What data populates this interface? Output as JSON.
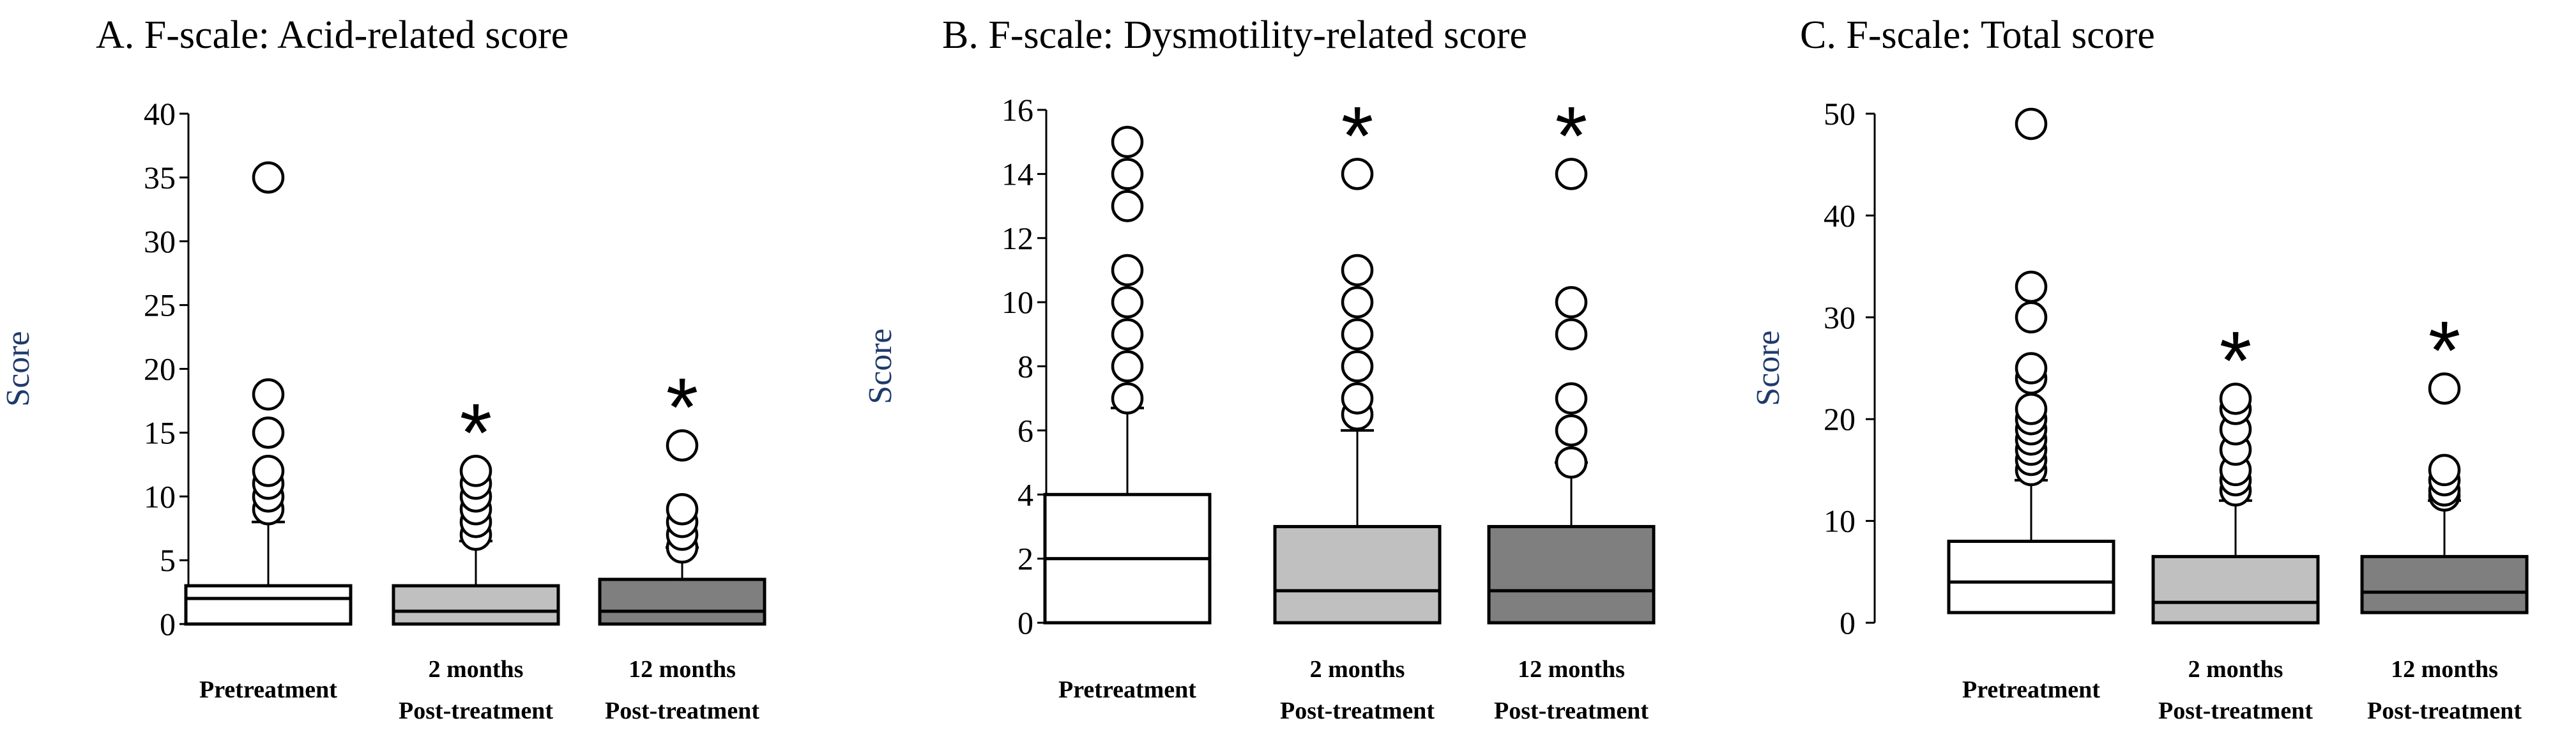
{
  "chart_data": [
    {
      "type": "box",
      "title": "A. F-scale: Acid-related score",
      "xlabel": "",
      "ylabel": "Score",
      "ylim": [
        0,
        40
      ],
      "yticks": [
        0,
        5,
        10,
        15,
        20,
        25,
        30,
        35,
        40
      ],
      "categories": [
        {
          "lines": [
            "Pretreatment"
          ],
          "fill": "#ffffff",
          "q1": 0,
          "median": 2,
          "q3": 3,
          "whisker_high": 8,
          "outliers": [
            9,
            10,
            11,
            12,
            15,
            18,
            35
          ],
          "significant": false
        },
        {
          "lines": [
            "2 months",
            "Post-treatment"
          ],
          "fill": "#c0c0c0",
          "q1": 0,
          "median": 1,
          "q3": 3,
          "whisker_high": 6.5,
          "outliers": [
            7,
            8,
            9,
            10,
            11,
            12
          ],
          "significant": true
        },
        {
          "lines": [
            "12 months",
            "Post-treatment"
          ],
          "fill": "#7f7f7f",
          "q1": 0,
          "median": 1,
          "q3": 3.5,
          "whisker_high": 6,
          "outliers": [
            6,
            7,
            8,
            9,
            14
          ],
          "significant": true
        }
      ],
      "significance_marker": "*"
    },
    {
      "type": "box",
      "title": "B. F-scale: Dysmotility-related score",
      "xlabel": "",
      "ylabel": "Score",
      "ylim": [
        0,
        16
      ],
      "yticks": [
        0,
        2,
        4,
        6,
        8,
        10,
        12,
        14,
        16
      ],
      "categories": [
        {
          "lines": [
            "Pretreatment"
          ],
          "fill": "#ffffff",
          "q1": 0,
          "median": 2,
          "q3": 4,
          "whisker_high": 6.7,
          "outliers": [
            7,
            8,
            9,
            10,
            11,
            13,
            14,
            15
          ],
          "significant": false
        },
        {
          "lines": [
            "2 months",
            "Post-treatment"
          ],
          "fill": "#c0c0c0",
          "q1": 0,
          "median": 1,
          "q3": 3,
          "whisker_high": 6,
          "outliers": [
            6.5,
            7,
            8,
            9,
            10,
            11,
            14
          ],
          "significant": true
        },
        {
          "lines": [
            "12 months",
            "Post-treatment"
          ],
          "fill": "#7f7f7f",
          "q1": 0,
          "median": 1,
          "q3": 3,
          "whisker_high": 5,
          "outliers": [
            5,
            6,
            7,
            9,
            10,
            14
          ],
          "significant": true
        }
      ],
      "significance_marker": "*"
    },
    {
      "type": "box",
      "title": "C. F-scale: Total score",
      "xlabel": "",
      "ylabel": "Score",
      "ylim": [
        0,
        50
      ],
      "yticks": [
        0,
        10,
        20,
        30,
        40,
        50
      ],
      "categories": [
        {
          "lines": [
            "Pretreatment"
          ],
          "fill": "#ffffff",
          "q1": 1,
          "median": 4,
          "q3": 8,
          "whisker_high": 14,
          "outliers": [
            15,
            16,
            17,
            18,
            19,
            20,
            21,
            24,
            25,
            30,
            33,
            49
          ],
          "significant": false
        },
        {
          "lines": [
            "2 months",
            "Post-treatment"
          ],
          "fill": "#c0c0c0",
          "q1": 0,
          "median": 2,
          "q3": 6.5,
          "whisker_high": 12,
          "outliers": [
            13,
            14,
            15,
            17,
            19,
            21,
            22
          ],
          "significant": true
        },
        {
          "lines": [
            "12 months",
            "Post-treatment"
          ],
          "fill": "#7f7f7f",
          "q1": 1,
          "median": 3,
          "q3": 6.5,
          "whisker_high": 12,
          "outliers": [
            12.5,
            13,
            14,
            15,
            23
          ],
          "significant": true
        }
      ],
      "significance_marker": "*"
    }
  ]
}
